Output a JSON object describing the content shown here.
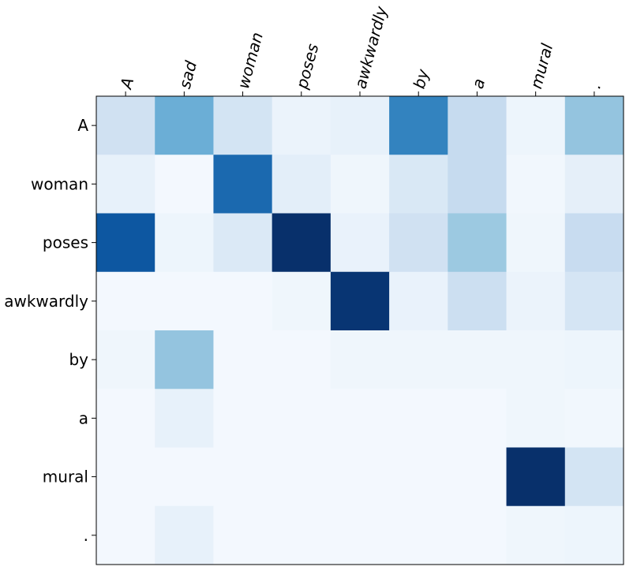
{
  "chart_data": {
    "type": "heatmap",
    "title": "",
    "xlabel": "",
    "ylabel": "",
    "colormap": "Blues",
    "x_categories": [
      "A",
      "sad",
      "woman",
      "poses",
      "awkwardly",
      "by",
      "a",
      "mural",
      "."
    ],
    "y_categories": [
      "A",
      "woman",
      "poses",
      "awkwardly",
      "by",
      "a",
      "mural",
      "."
    ],
    "values": [
      [
        0.2,
        0.5,
        0.18,
        0.06,
        0.08,
        0.68,
        0.25,
        0.05,
        0.4
      ],
      [
        0.08,
        0.02,
        0.78,
        0.1,
        0.04,
        0.15,
        0.25,
        0.03,
        0.09
      ],
      [
        0.85,
        0.05,
        0.14,
        1.0,
        0.07,
        0.2,
        0.38,
        0.04,
        0.24
      ],
      [
        0.02,
        0.02,
        0.02,
        0.04,
        0.98,
        0.07,
        0.22,
        0.06,
        0.17
      ],
      [
        0.04,
        0.4,
        0.02,
        0.02,
        0.04,
        0.04,
        0.04,
        0.04,
        0.05
      ],
      [
        0.02,
        0.08,
        0.02,
        0.02,
        0.02,
        0.02,
        0.02,
        0.04,
        0.03
      ],
      [
        0.02,
        0.02,
        0.02,
        0.02,
        0.02,
        0.02,
        0.02,
        1.0,
        0.18
      ],
      [
        0.02,
        0.08,
        0.02,
        0.02,
        0.02,
        0.02,
        0.02,
        0.04,
        0.05
      ]
    ],
    "x_tick_position": "top",
    "x_tick_rotation": 75,
    "grid": false,
    "legend": "none"
  }
}
